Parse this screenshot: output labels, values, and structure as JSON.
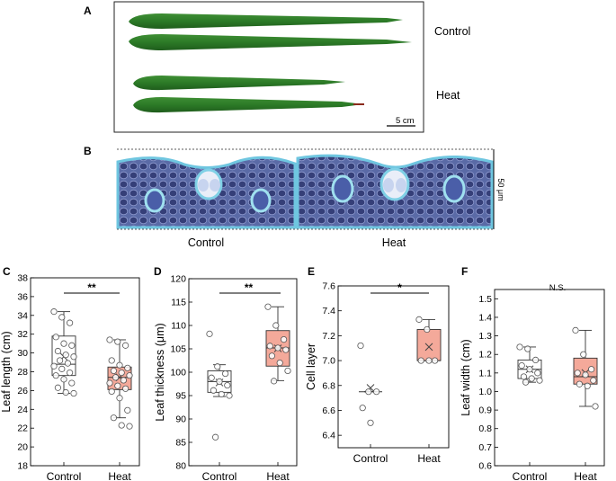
{
  "panels": {
    "A": {
      "letter": "A",
      "labels": [
        "Control",
        "Heat"
      ],
      "scale_bar": "5 cm"
    },
    "B": {
      "letter": "B",
      "labels": [
        "Control",
        "Heat"
      ],
      "scale_bar": "50 μm"
    }
  },
  "colors": {
    "control_box": "#ffffff",
    "heat_box": "#f4a99a",
    "leaf_green": "#2f7d2a",
    "tissue_blue": "#3a4d8c",
    "tissue_cyan": "#7fd0e6"
  },
  "chart_data": [
    {
      "letter": "C",
      "type": "box",
      "ylabel": "Leaf length (cm)",
      "ylim": [
        18,
        38
      ],
      "yticks": [
        18,
        20,
        22,
        24,
        26,
        28,
        30,
        32,
        34,
        36,
        38
      ],
      "categories": [
        "Control",
        "Heat"
      ],
      "significance": "**",
      "boxes": [
        {
          "name": "Control",
          "whisker_low": 25.7,
          "q1": 27.6,
          "median": 28.8,
          "q3": 31.8,
          "whisker_high": 34.4,
          "mean": 29.6,
          "points": [
            34.4,
            33.8,
            33.2,
            31.7,
            31.0,
            30.8,
            30.2,
            29.8,
            29.6,
            29.2,
            28.9,
            28.6,
            28.3,
            27.9,
            27.6,
            27.2,
            26.8,
            26.3,
            25.8,
            25.7
          ]
        },
        {
          "name": "Heat",
          "whisker_low": 23.1,
          "q1": 26.1,
          "median": 27.4,
          "q3": 28.5,
          "whisker_high": 31.4,
          "mean": 27.4,
          "points": [
            31.4,
            31.2,
            30.8,
            29.2,
            28.7,
            28.4,
            28.1,
            27.9,
            27.6,
            27.4,
            27.1,
            26.8,
            26.5,
            26.2,
            25.9,
            25.2,
            23.9,
            23.1,
            22.3,
            22.2
          ]
        }
      ]
    },
    {
      "letter": "D",
      "type": "box",
      "ylabel": "Leaf thickness (μm)",
      "ylim": [
        80,
        120
      ],
      "yticks": [
        80,
        85,
        90,
        95,
        100,
        105,
        110,
        115,
        120
      ],
      "categories": [
        "Control",
        "Heat"
      ],
      "significance": "**",
      "boxes": [
        {
          "name": "Control",
          "whisker_low": 94.8,
          "q1": 95.7,
          "median": 98.0,
          "q3": 100.3,
          "whisker_high": 101.6,
          "mean": 97.8,
          "points": [
            108.2,
            101.2,
            99.7,
            98.8,
            98.0,
            97.2,
            96.1,
            95.3,
            95.0,
            86.1
          ]
        },
        {
          "name": "Heat",
          "whisker_low": 98.2,
          "q1": 101.3,
          "median": 105.2,
          "q3": 108.9,
          "whisker_high": 114.0,
          "mean": 105.1,
          "points": [
            114.0,
            110.0,
            107.0,
            105.6,
            105.2,
            104.8,
            103.5,
            102.0,
            100.3,
            98.1
          ]
        }
      ]
    },
    {
      "letter": "E",
      "type": "box",
      "ylabel": "Cell layer",
      "ylim": [
        6.3,
        7.6
      ],
      "yticks": [
        6.4,
        6.6,
        6.8,
        7.0,
        7.2,
        7.4,
        7.6
      ],
      "categories": [
        "Control",
        "Heat"
      ],
      "significance": "*",
      "boxes": [
        {
          "name": "Control",
          "whisker_low": 6.75,
          "q1": 6.75,
          "median": 6.75,
          "q3": 6.75,
          "whisker_high": 6.75,
          "mean": 6.78,
          "points": [
            7.12,
            6.75,
            6.75,
            6.62,
            6.5
          ]
        },
        {
          "name": "Heat",
          "whisker_low": 7.0,
          "q1": 7.0,
          "median": 7.0,
          "q3": 7.25,
          "whisker_high": 7.33,
          "mean": 7.11,
          "points": [
            7.33,
            7.25,
            7.0,
            7.0,
            7.0
          ]
        }
      ]
    },
    {
      "letter": "F",
      "type": "box",
      "ylabel": "Leaf width (cm)",
      "ylim": [
        0.6,
        1.55
      ],
      "yticks": [
        0.6,
        0.7,
        0.8,
        0.9,
        1.0,
        1.1,
        1.2,
        1.3,
        1.4,
        1.5
      ],
      "categories": [
        "Control",
        "Heat"
      ],
      "significance": "N.S.",
      "boxes": [
        {
          "name": "Control",
          "whisker_low": 1.05,
          "q1": 1.07,
          "median": 1.12,
          "q3": 1.17,
          "whisker_high": 1.24,
          "mean": 1.12,
          "points": [
            1.24,
            1.23,
            1.17,
            1.14,
            1.12,
            1.1,
            1.08,
            1.07,
            1.06,
            1.05
          ]
        },
        {
          "name": "Heat",
          "whisker_low": 0.92,
          "q1": 1.04,
          "median": 1.08,
          "q3": 1.18,
          "whisker_high": 1.33,
          "mean": 1.1,
          "points": [
            1.33,
            1.2,
            1.12,
            1.1,
            1.09,
            1.06,
            1.04,
            1.03,
            0.92
          ]
        }
      ]
    }
  ]
}
